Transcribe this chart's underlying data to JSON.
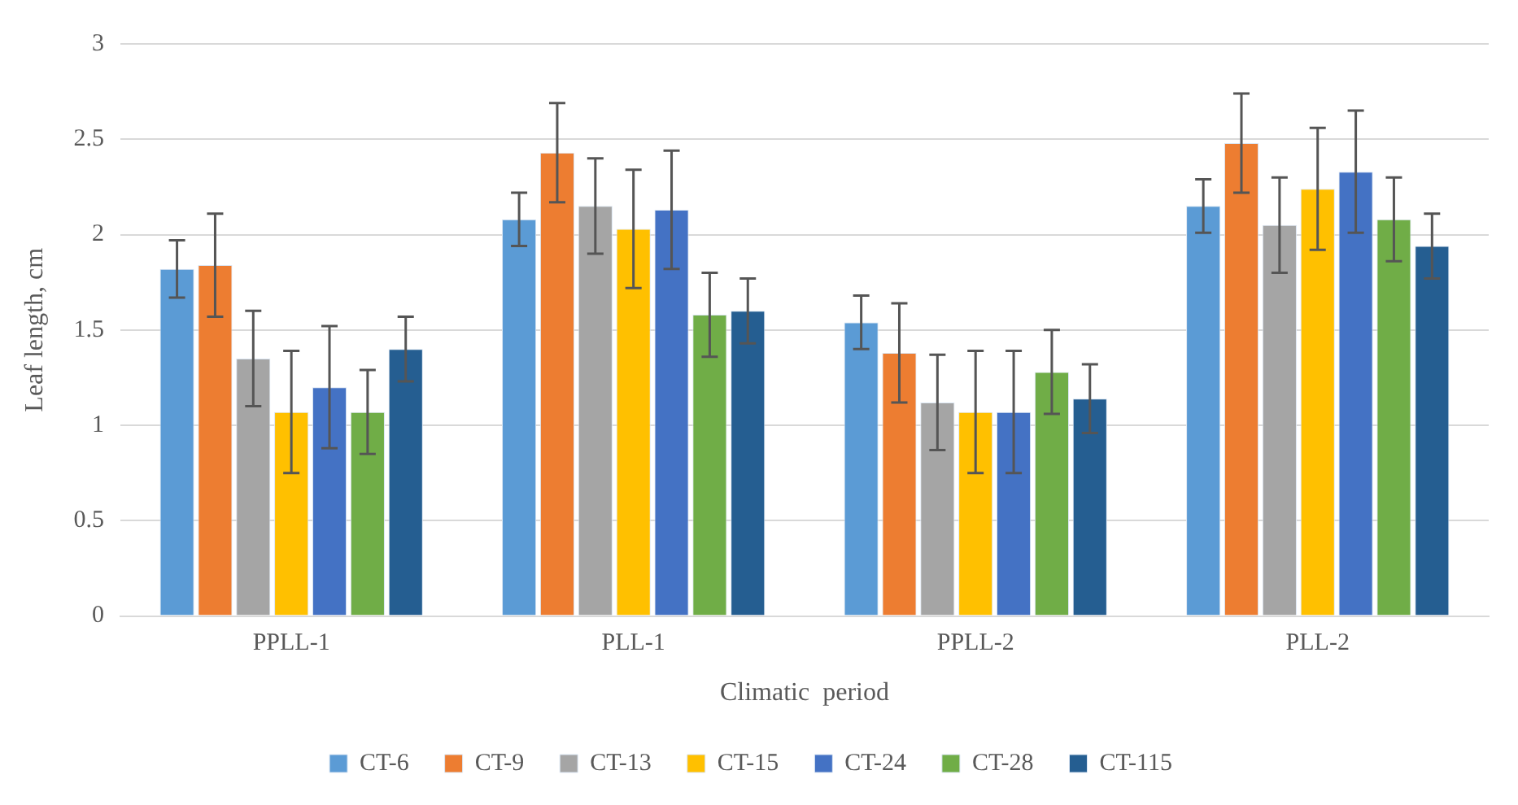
{
  "chart_data": {
    "type": "bar",
    "xlabel": "Climatic  period",
    "ylabel": "Leaf length, cm",
    "categories": [
      "PPLL-1",
      "PLL-1",
      "PPLL-2",
      "PLL-2"
    ],
    "series": [
      {
        "name": "CT-6",
        "color": "#5b9bd5",
        "values": [
          1.82,
          2.08,
          1.54,
          2.15
        ],
        "errors": [
          0.15,
          0.14,
          0.14,
          0.14
        ]
      },
      {
        "name": "CT-9",
        "color": "#ed7d31",
        "values": [
          1.84,
          2.43,
          1.38,
          2.48
        ],
        "errors": [
          0.27,
          0.26,
          0.26,
          0.26
        ]
      },
      {
        "name": "CT-13",
        "color": "#a5a5a5",
        "values": [
          1.35,
          2.15,
          1.12,
          2.05
        ],
        "errors": [
          0.25,
          0.25,
          0.25,
          0.25
        ]
      },
      {
        "name": "CT-15",
        "color": "#ffc000",
        "values": [
          1.07,
          2.03,
          1.07,
          2.24
        ],
        "errors": [
          0.32,
          0.31,
          0.32,
          0.32
        ]
      },
      {
        "name": "CT-24",
        "color": "#4472c4",
        "values": [
          1.2,
          2.13,
          1.07,
          2.33
        ],
        "errors": [
          0.32,
          0.31,
          0.32,
          0.32
        ]
      },
      {
        "name": "CT-28",
        "color": "#70ad47",
        "values": [
          1.07,
          1.58,
          1.28,
          2.08
        ],
        "errors": [
          0.22,
          0.22,
          0.22,
          0.22
        ]
      },
      {
        "name": "CT-115",
        "color": "#255e91",
        "values": [
          1.4,
          1.6,
          1.14,
          1.94
        ],
        "errors": [
          0.17,
          0.17,
          0.18,
          0.17
        ]
      }
    ],
    "ylim": [
      0,
      3
    ],
    "yticks": [
      0,
      0.5,
      1,
      1.5,
      2,
      2.5,
      3
    ],
    "grid": "y",
    "legend": "bottom"
  }
}
